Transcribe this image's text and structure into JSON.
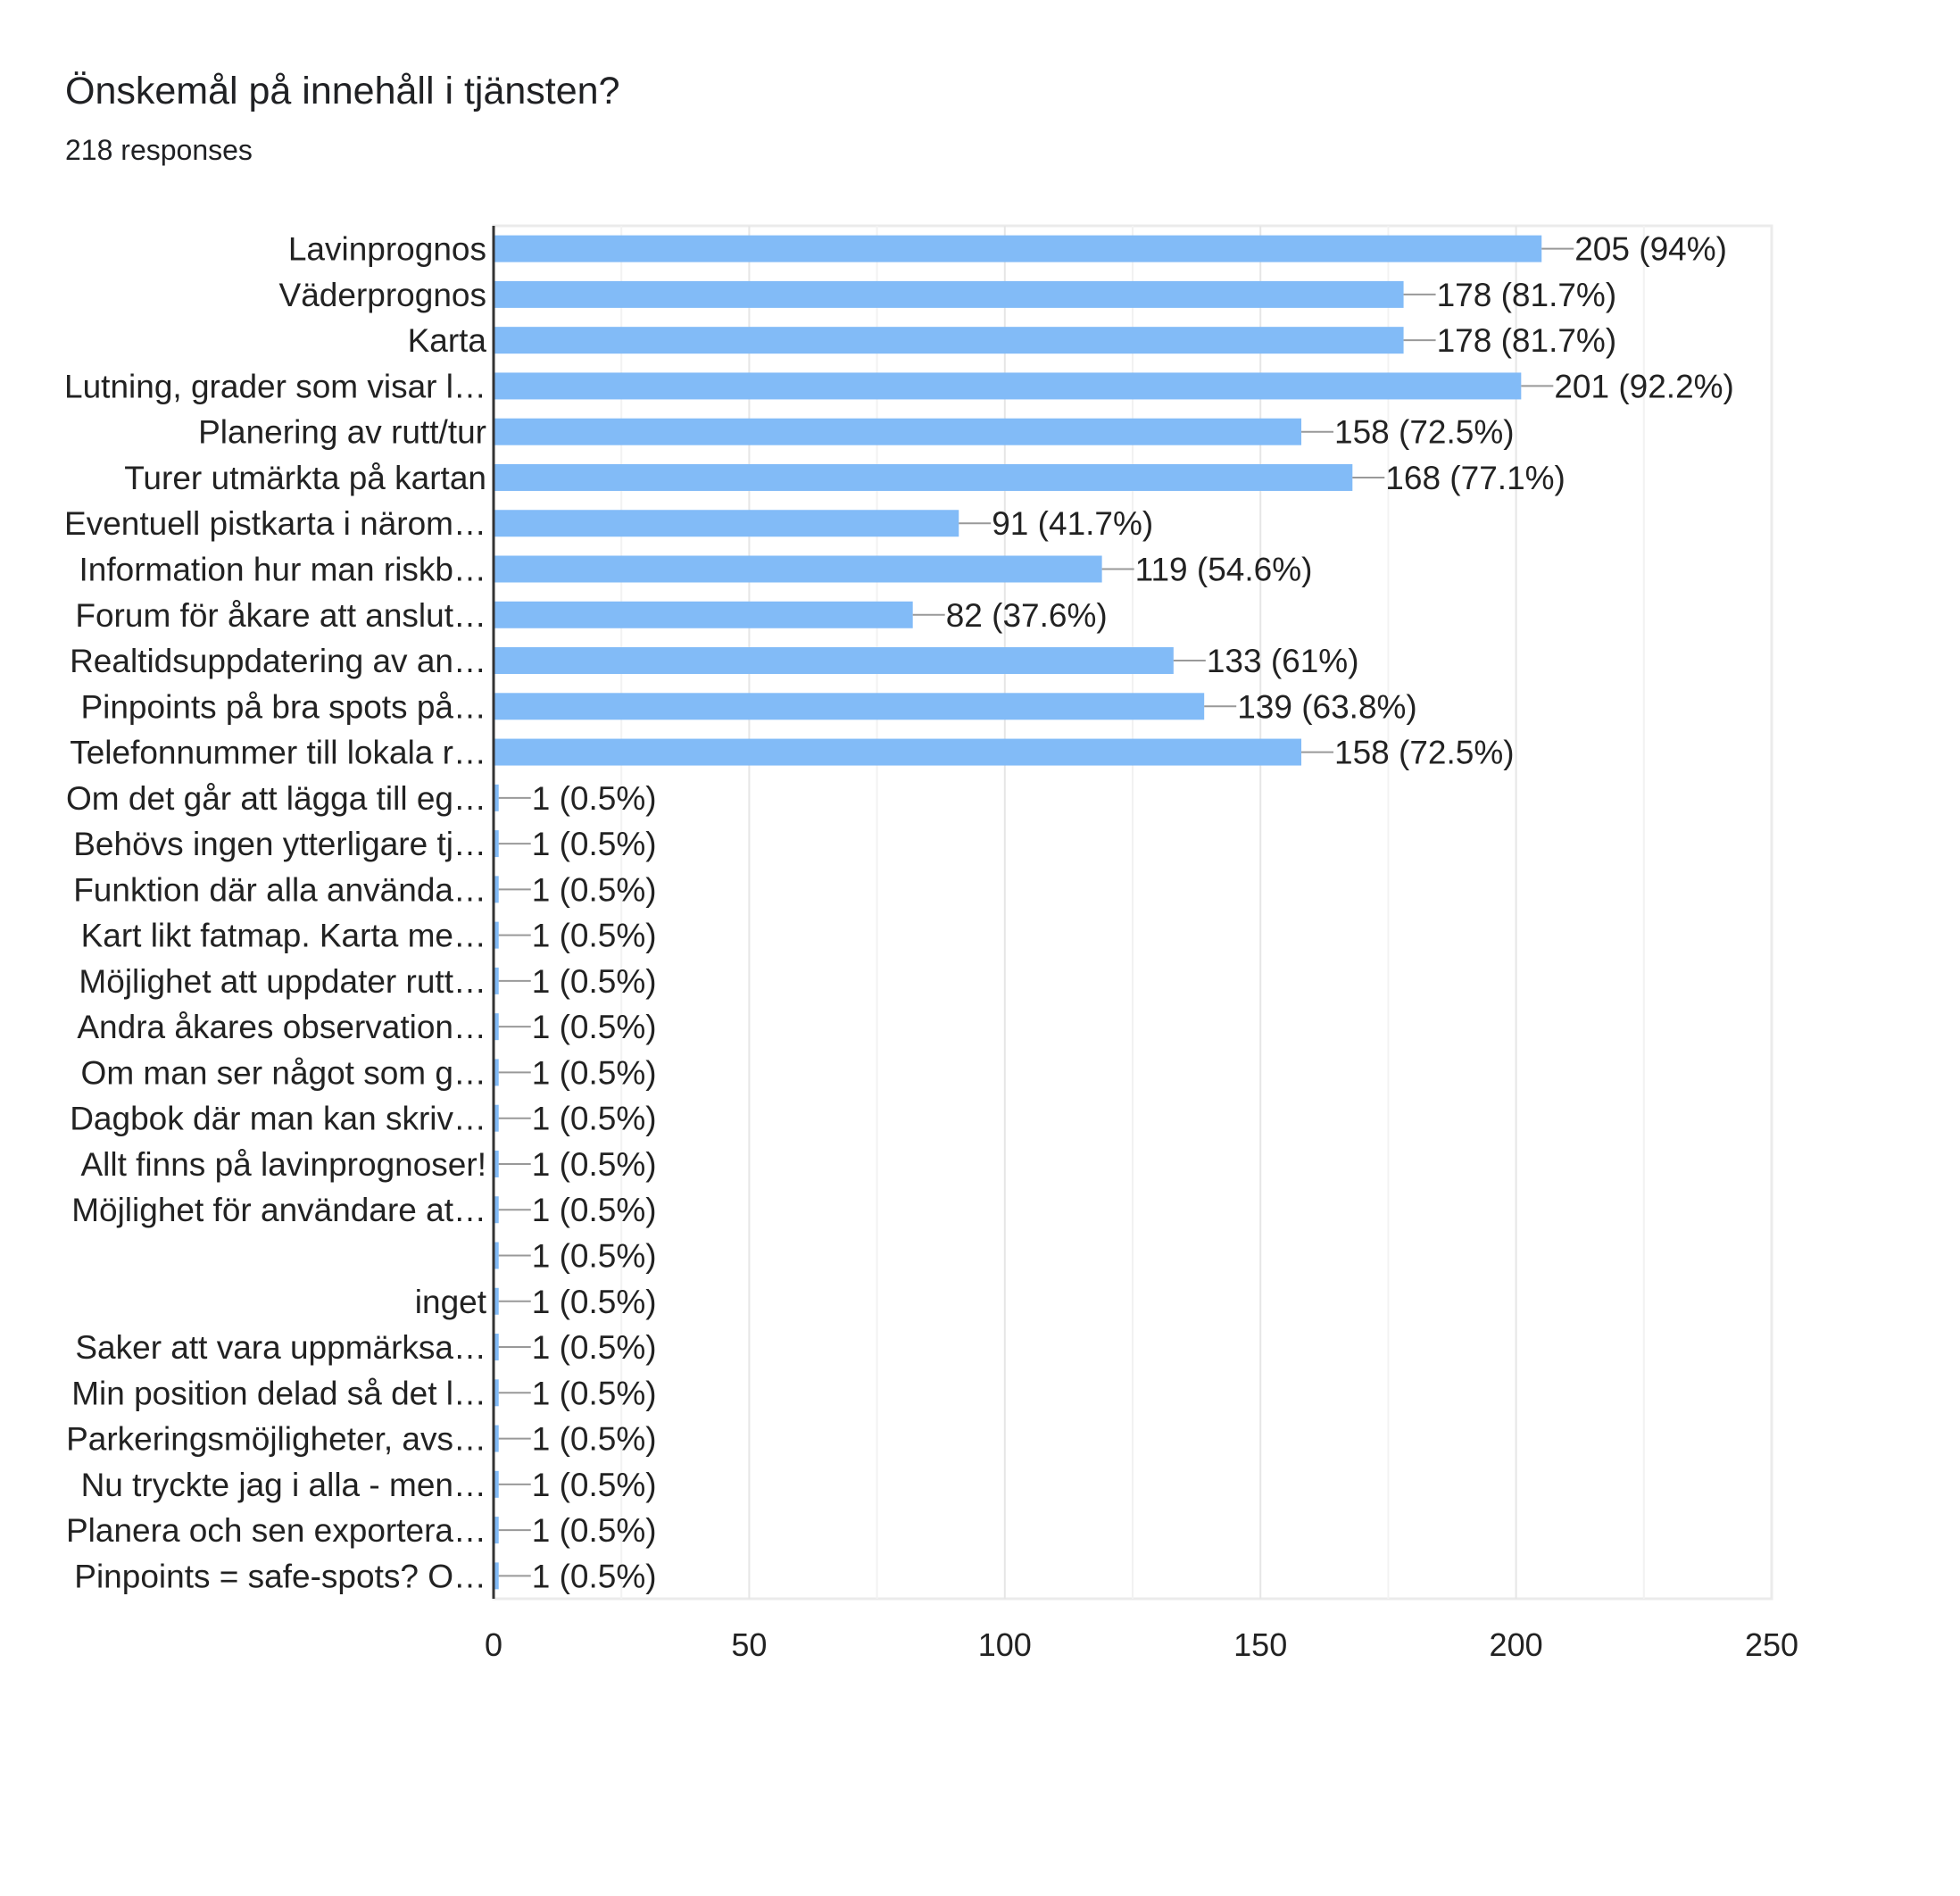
{
  "header": {
    "title": "Önskemål på innehåll i tjänsten?",
    "responses": "218 responses"
  },
  "chart_data": {
    "type": "bar",
    "orientation": "horizontal",
    "title": "",
    "xlabel": "",
    "ylabel": "",
    "xlim": [
      0,
      250
    ],
    "x_ticks": [
      "0",
      "50",
      "100",
      "150",
      "200",
      "250"
    ],
    "grid": true,
    "bar_color": "#82bbf7",
    "categories": [
      "Lavinprognos",
      "Väderprognos",
      "Karta",
      "Lutning, grader som visar l…",
      "Planering av rutt/tur",
      "Turer utmärkta på kartan",
      "Eventuell pistkarta i närom…",
      "Information hur man riskb…",
      "Forum för åkare att anslut…",
      "Realtidsuppdatering av an…",
      "Pinpoints på bra spots på…",
      "Telefonnummer till lokala r…",
      "Om det går att lägga till eg…",
      "Behövs ingen ytterligare tj…",
      "Funktion där alla använda…",
      "Kart likt fatmap. Karta me…",
      "Möjlighet att uppdater rutt…",
      "Andra åkares observation…",
      "Om man ser något som g…",
      "Dagbok där man kan skriv…",
      "Allt finns på lavinprognoser!",
      "Möjlighet för användare at…",
      "",
      "inget",
      "Saker att vara uppmärksa…",
      "Min position delad så det l…",
      "Parkeringsmöjligheter, avs…",
      "Nu tryckte jag i alla - men…",
      "Planera och sen exportera…",
      "Pinpoints = safe-spots? O…"
    ],
    "values": [
      205,
      178,
      178,
      201,
      158,
      168,
      91,
      119,
      82,
      133,
      139,
      158,
      1,
      1,
      1,
      1,
      1,
      1,
      1,
      1,
      1,
      1,
      1,
      1,
      1,
      1,
      1,
      1,
      1,
      1
    ],
    "value_labels": [
      "205 (94%)",
      "178 (81.7%)",
      "178 (81.7%)",
      "201 (92.2%)",
      "158 (72.5%)",
      "168 (77.1%)",
      "91 (41.7%)",
      "119 (54.6%)",
      "82 (37.6%)",
      "133 (61%)",
      "139 (63.8%)",
      "158 (72.5%)",
      "1 (0.5%)",
      "1 (0.5%)",
      "1 (0.5%)",
      "1 (0.5%)",
      "1 (0.5%)",
      "1 (0.5%)",
      "1 (0.5%)",
      "1 (0.5%)",
      "1 (0.5%)",
      "1 (0.5%)",
      "1 (0.5%)",
      "1 (0.5%)",
      "1 (0.5%)",
      "1 (0.5%)",
      "1 (0.5%)",
      "1 (0.5%)",
      "1 (0.5%)",
      "1 (0.5%)"
    ]
  }
}
